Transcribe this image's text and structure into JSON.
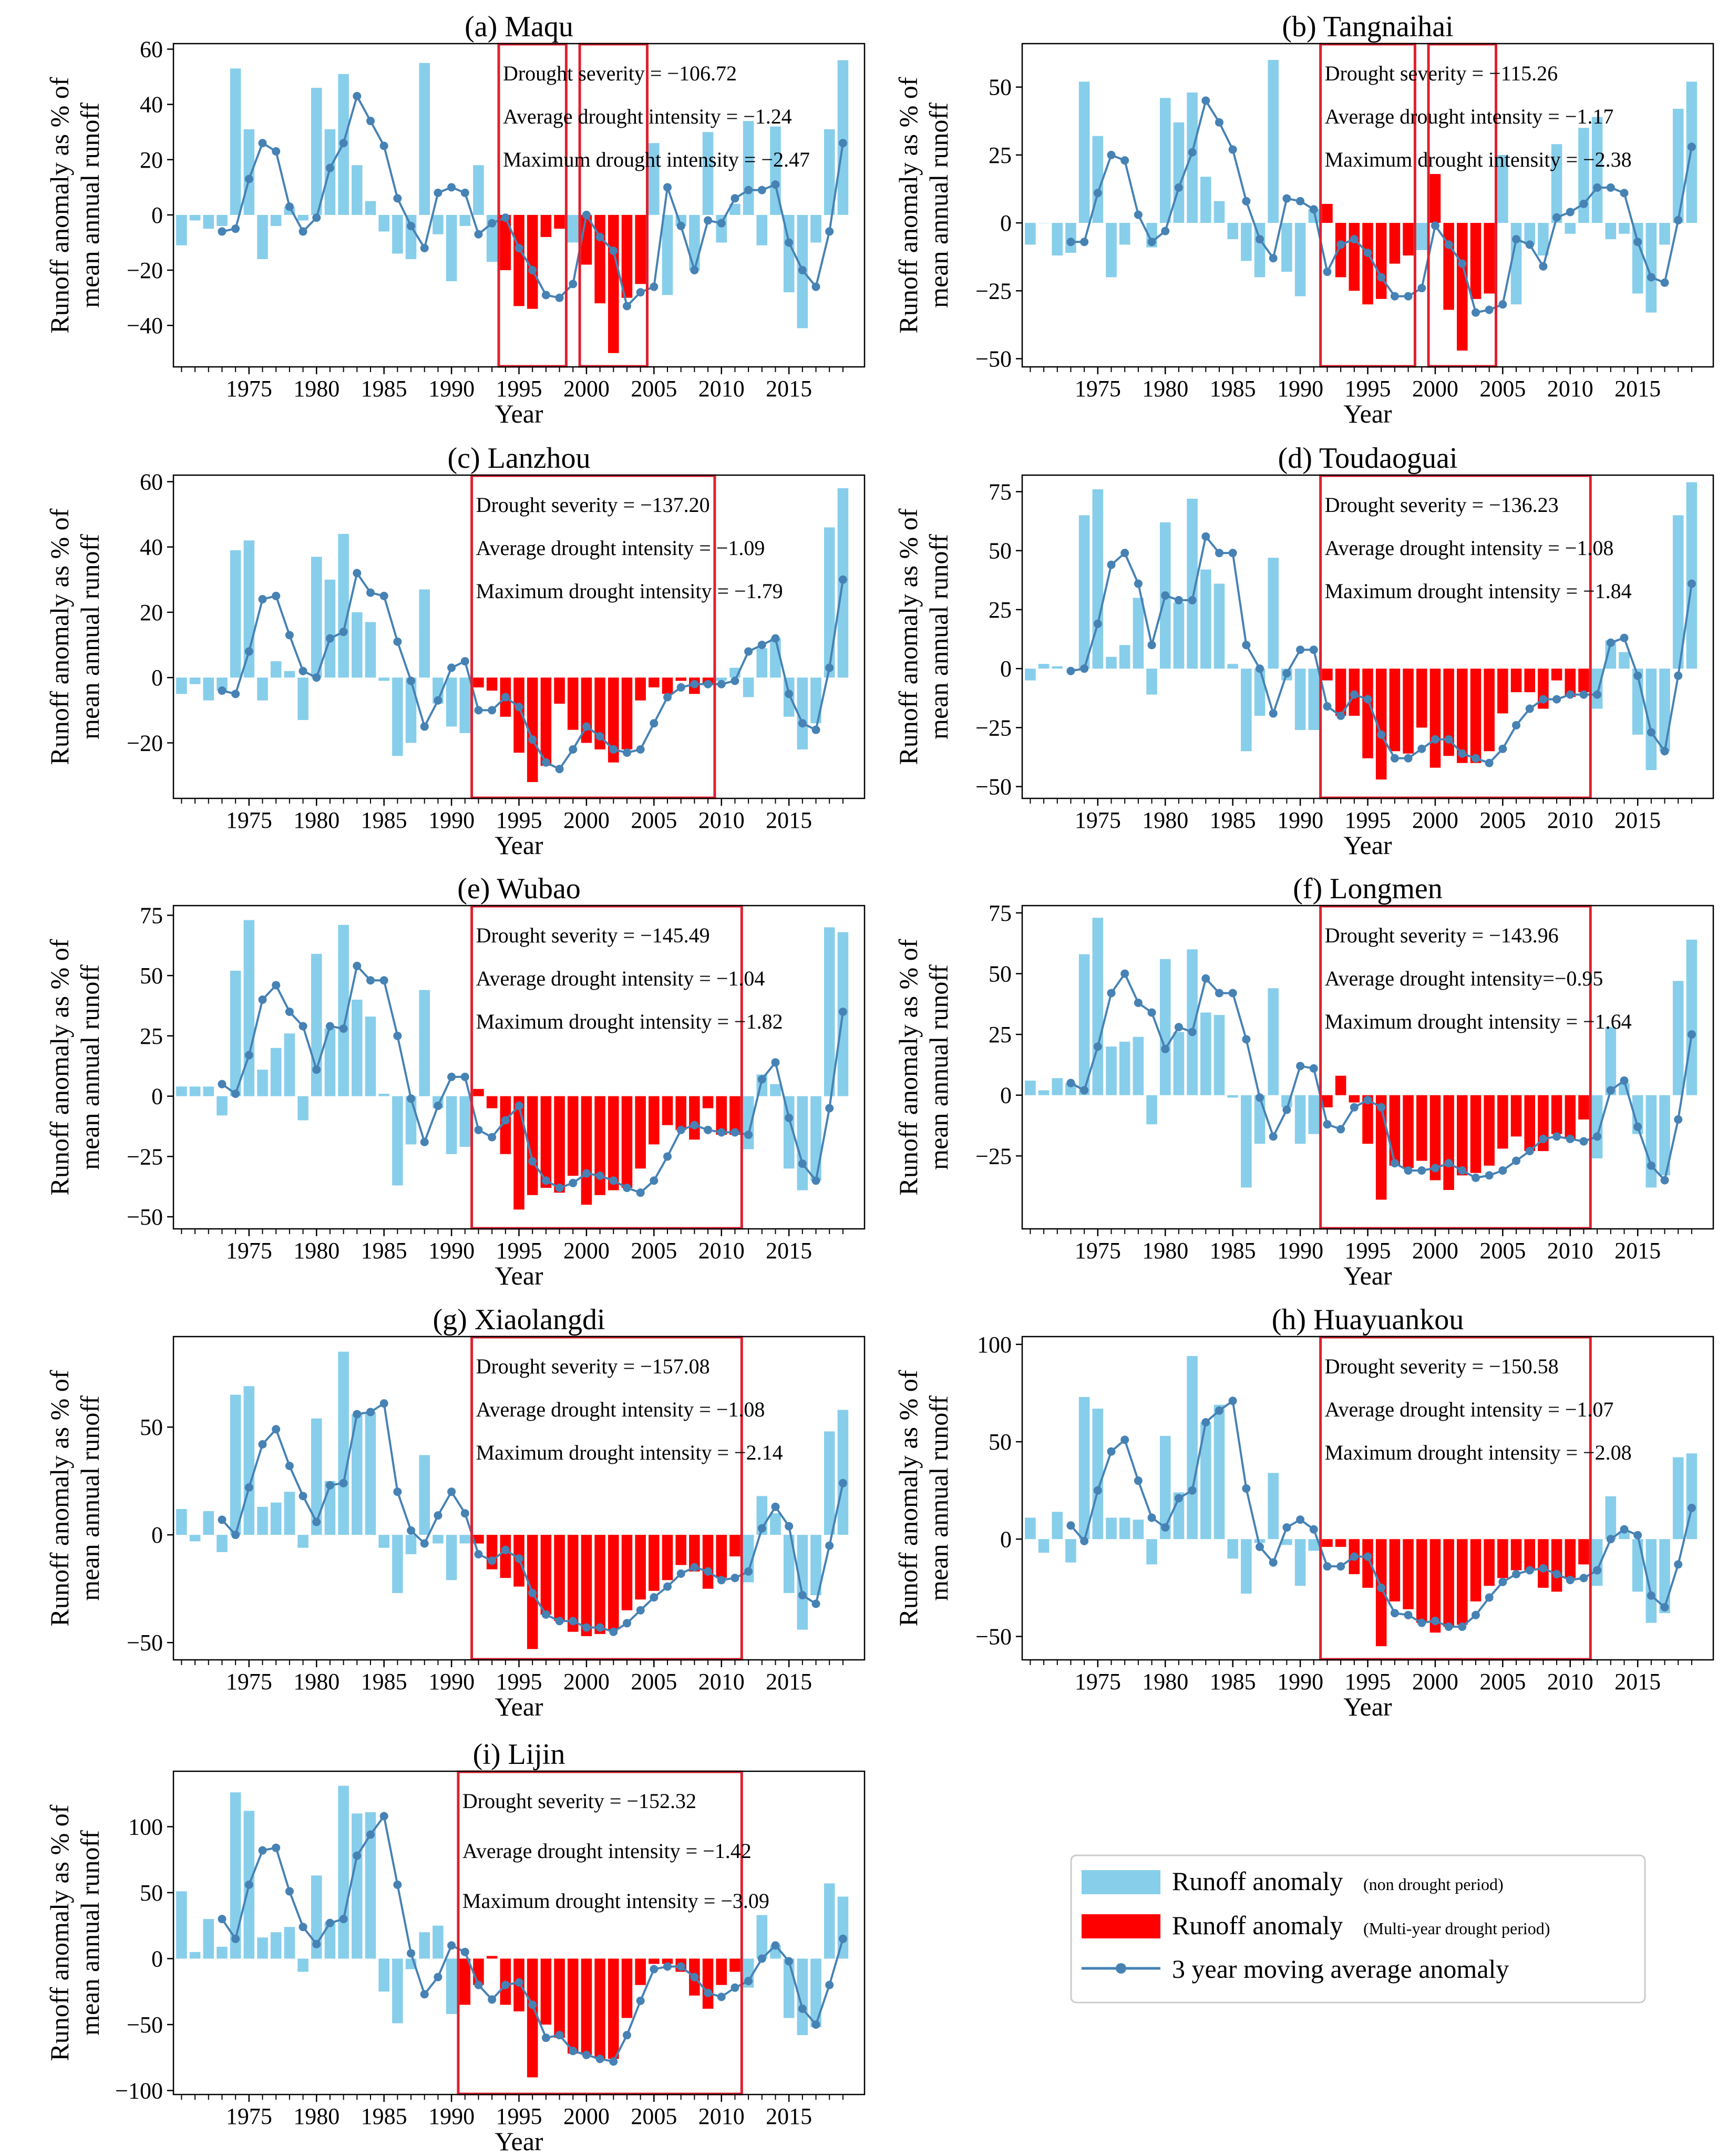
{
  "figure": {
    "legend": {
      "items": [
        {
          "label": "Runoff anomaly",
          "note": "(non drought period)",
          "color": "#87CEEB",
          "kind": "bar"
        },
        {
          "label": "Runoff anomaly",
          "note": "(Multi-year drought period)",
          "color": "#FF0000",
          "kind": "bar"
        },
        {
          "label": "3 year moving average anomaly",
          "note": "",
          "color": "#4682B4",
          "kind": "line"
        }
      ]
    },
    "shared": {
      "xlabel": "Year",
      "ylabel_line1": "Runoff anomaly as % of",
      "ylabel_line2": "mean annual runoff",
      "x_ticks": [
        1975,
        1980,
        1985,
        1990,
        1995,
        2000,
        2005,
        2010,
        2015
      ],
      "xlim": [
        1969.4,
        2020.6
      ],
      "years_range": [
        1970,
        2019
      ],
      "bar_color_normal": "#87CEEB",
      "bar_color_drought": "#FF0000",
      "line_color": "#4682B4",
      "box_color": "#E0202E"
    }
  },
  "chart_data": [
    {
      "type": "bar",
      "title": "(a) Maqu",
      "ylim": [
        -55,
        62
      ],
      "y_ticks": [
        -40,
        -20,
        0,
        20,
        40,
        60
      ],
      "drought_periods": [
        [
          1994,
          1998
        ],
        [
          2000,
          2004
        ]
      ],
      "annotations": [
        "Drought severity = −106.72",
        "Average drought intensity = −1.24",
        "Maximum drought intensity = −2.47"
      ],
      "anomaly": [
        -11,
        -2,
        -5,
        -4,
        53,
        31,
        -16,
        -4,
        3,
        -2,
        46,
        31,
        51,
        18,
        5,
        -6,
        -14,
        -16,
        55,
        -7,
        -24,
        -4,
        18,
        -17,
        -20,
        -33,
        -34,
        -8,
        -5,
        -10,
        -18,
        -32,
        -50,
        -30,
        -25,
        26,
        -29,
        -4,
        -20,
        30,
        -10,
        4,
        34,
        -11,
        32,
        -28,
        -41,
        -10,
        31,
        56
      ],
      "moving_avg": [
        null,
        null,
        null,
        -6,
        -5,
        13,
        26,
        23,
        3,
        -6,
        -1,
        17,
        26,
        43,
        34,
        25,
        6,
        -4,
        -12,
        8,
        10,
        8,
        -7,
        -3,
        -1,
        -12,
        -20,
        -29,
        -30,
        -25,
        0,
        -8,
        -13,
        -33,
        -28,
        -26,
        10,
        -4,
        -20,
        -2,
        -3,
        6,
        9,
        9,
        11,
        -10,
        -20,
        -26,
        -6,
        26
      ]
    },
    {
      "type": "bar",
      "title": "(b) Tangnaihai",
      "ylim": [
        -53,
        66
      ],
      "y_ticks": [
        -50,
        -25,
        0,
        25,
        50
      ],
      "drought_periods": [
        [
          1992,
          1998
        ],
        [
          2000,
          2004
        ]
      ],
      "annotations": [
        "Drought severity = −115.26",
        "Average drought intensity = −1.17",
        "Maximum drought intensity = −2.38"
      ],
      "anomaly": [
        -8,
        0,
        -12,
        -11,
        52,
        32,
        -20,
        -8,
        0,
        -9,
        46,
        37,
        48,
        17,
        8,
        -6,
        -14,
        -20,
        60,
        -18,
        -27,
        5,
        7,
        -20,
        -25,
        -30,
        -28,
        -15,
        -12,
        -10,
        18,
        -32,
        -47,
        -28,
        -26,
        25,
        -30,
        -8,
        -12,
        29,
        -4,
        35,
        39,
        -6,
        -4,
        -26,
        -33,
        -8,
        42,
        52
      ],
      "moving_avg": [
        null,
        null,
        null,
        -7,
        -7,
        11,
        25,
        23,
        3,
        -7,
        -3,
        13,
        26,
        45,
        37,
        27,
        8,
        -6,
        -13,
        9,
        8,
        5,
        -18,
        -8,
        -6,
        -11,
        -20,
        -27,
        -27,
        -24,
        -1,
        -8,
        -15,
        -33,
        -32,
        -30,
        -6,
        -8,
        -16,
        2,
        4,
        7,
        13,
        13,
        11,
        -7,
        -20,
        -22,
        1,
        28
      ]
    },
    {
      "type": "bar",
      "title": "(c) Lanzhou",
      "ylim": [
        -37,
        62
      ],
      "y_ticks": [
        -20,
        0,
        20,
        40,
        60
      ],
      "drought_periods": [
        [
          1992,
          2009
        ]
      ],
      "annotations": [
        "Drought severity = −137.20",
        "Average drought intensity = −1.09",
        "Maximum drought intensity = −1.79"
      ],
      "anomaly": [
        -5,
        -2,
        -7,
        -4,
        39,
        42,
        -7,
        5,
        2,
        -13,
        37,
        30,
        44,
        20,
        17,
        -1,
        -24,
        -20,
        27,
        -8,
        -15,
        -17,
        -3,
        -4,
        -12,
        -23,
        -32,
        -27,
        -8,
        -16,
        -20,
        -22,
        -26,
        -22,
        -7,
        -3,
        -5,
        -1,
        -5,
        -2,
        -1,
        3,
        -6,
        9,
        12,
        -12,
        -22,
        -14,
        46,
        58
      ],
      "moving_avg": [
        null,
        null,
        null,
        -4,
        -5,
        8,
        24,
        25,
        13,
        2,
        0,
        12,
        14,
        32,
        26,
        25,
        11,
        -1,
        -15,
        -7,
        3,
        5,
        -10,
        -10,
        -6,
        -9,
        -19,
        -26,
        -28,
        -22,
        -15,
        -18,
        -22,
        -23,
        -22,
        -14,
        -6,
        -3,
        -2,
        -2,
        -2,
        -1,
        8,
        10,
        12,
        -5,
        -14,
        -16,
        3,
        30
      ]
    },
    {
      "type": "bar",
      "title": "(d) Toudaoguai",
      "ylim": [
        -55,
        82
      ],
      "y_ticks": [
        -50,
        -25,
        0,
        25,
        50,
        75
      ],
      "drought_periods": [
        [
          1992,
          2011
        ]
      ],
      "annotations": [
        "Drought severity = −136.23",
        "Average drought intensity = −1.08",
        "Maximum drought intensity = −1.84"
      ],
      "anomaly": [
        -5,
        2,
        1,
        0,
        65,
        76,
        5,
        10,
        30,
        -11,
        62,
        28,
        72,
        42,
        36,
        2,
        -35,
        -20,
        47,
        -5,
        -26,
        -26,
        -5,
        -20,
        -20,
        -38,
        -47,
        -35,
        -36,
        -25,
        -42,
        -37,
        -40,
        -40,
        -35,
        -19,
        -10,
        -10,
        -17,
        -5,
        -12,
        -10,
        -17,
        12,
        7,
        -28,
        -43,
        -35,
        65,
        79
      ],
      "moving_avg": [
        null,
        null,
        null,
        -1,
        0,
        19,
        44,
        49,
        36,
        10,
        31,
        29,
        29,
        56,
        49,
        49,
        10,
        0,
        -19,
        -2,
        8,
        8,
        -16,
        -20,
        -11,
        -13,
        -28,
        -38,
        -38,
        -34,
        -30,
        -30,
        -36,
        -38,
        -40,
        -34,
        -24,
        -17,
        -13,
        -13,
        -11,
        -11,
        -11,
        11,
        13,
        -3,
        -27,
        -35,
        -3,
        36
      ]
    },
    {
      "type": "bar",
      "title": "(e) Wubao",
      "ylim": [
        -55,
        79
      ],
      "y_ticks": [
        -50,
        -25,
        0,
        25,
        50,
        75
      ],
      "drought_periods": [
        [
          1992,
          2011
        ]
      ],
      "annotations": [
        "Drought severity = −145.49",
        "Average drought intensity = −1.04",
        "Maximum drought intensity = −1.82"
      ],
      "anomaly": [
        4,
        4,
        4,
        -8,
        52,
        73,
        11,
        20,
        26,
        -10,
        59,
        28,
        71,
        40,
        33,
        1,
        -37,
        -20,
        44,
        -5,
        -24,
        -21,
        3,
        -5,
        -24,
        -47,
        -41,
        -38,
        -40,
        -33,
        -45,
        -41,
        -39,
        -38,
        -30,
        -20,
        -12,
        -14,
        -18,
        -5,
        -16,
        -16,
        -22,
        9,
        5,
        -30,
        -39,
        -35,
        70,
        68
      ],
      "moving_avg": [
        null,
        null,
        null,
        5,
        1,
        17,
        40,
        46,
        35,
        29,
        11,
        29,
        28,
        54,
        48,
        48,
        25,
        -1,
        -19,
        -4,
        8,
        8,
        -14,
        -17,
        -10,
        -4,
        -27,
        -35,
        -38,
        -36,
        -32,
        -33,
        -35,
        -38,
        -40,
        -35,
        -25,
        -14,
        -12,
        -14,
        -15,
        -15,
        -16,
        7,
        14,
        -9,
        -28,
        -35,
        -5,
        35
      ]
    },
    {
      "type": "bar",
      "title": "(f) Longmen",
      "ylim": [
        -55,
        78
      ],
      "y_ticks": [
        -25,
        0,
        25,
        50,
        75
      ],
      "drought_periods": [
        [
          1992,
          2011
        ]
      ],
      "annotations": [
        "Drought severity = −143.96",
        "Average drought intensity=−0.95",
        "Maximum drought intensity = −1.64"
      ],
      "anomaly": [
        6,
        2,
        7,
        5,
        58,
        73,
        20,
        22,
        24,
        -12,
        56,
        26,
        60,
        34,
        33,
        -1,
        -38,
        -20,
        44,
        -5,
        -20,
        -16,
        -5,
        8,
        -3,
        -20,
        -43,
        -29,
        -30,
        -27,
        -35,
        -39,
        -33,
        -32,
        -29,
        -22,
        -17,
        -23,
        -23,
        -16,
        -18,
        -10,
        -26,
        28,
        5,
        -16,
        -38,
        -33,
        47,
        64
      ],
      "moving_avg": [
        null,
        null,
        null,
        5,
        2,
        20,
        42,
        50,
        38,
        34,
        19,
        28,
        26,
        48,
        42,
        42,
        23,
        -1,
        -17,
        -6,
        12,
        11,
        -12,
        -14,
        -5,
        -2,
        -5,
        -28,
        -31,
        -31,
        -30,
        -28,
        -31,
        -34,
        -33,
        -31,
        -27,
        -23,
        -18,
        -17,
        -18,
        -19,
        -17,
        2,
        6,
        -13,
        -29,
        -35,
        -10,
        25
      ]
    },
    {
      "type": "bar",
      "title": "(g) Xiaolangdi",
      "ylim": [
        -58,
        92
      ],
      "y_ticks": [
        -50,
        0,
        50
      ],
      "drought_periods": [
        [
          1992,
          2011
        ]
      ],
      "annotations": [
        "Drought severity = −157.08",
        "Average drought intensity = −1.08",
        "Maximum drought intensity = −2.14"
      ],
      "anomaly": [
        12,
        -3,
        11,
        -8,
        65,
        69,
        13,
        15,
        20,
        -6,
        54,
        25,
        85,
        56,
        57,
        -6,
        -27,
        -9,
        37,
        -4,
        -21,
        -4,
        -4,
        -16,
        -20,
        -24,
        -53,
        -37,
        -40,
        -45,
        -47,
        -46,
        -44,
        -35,
        -30,
        -26,
        -21,
        -14,
        -17,
        -25,
        -20,
        -10,
        -22,
        18,
        10,
        -27,
        -44,
        -28,
        48,
        58
      ],
      "moving_avg": [
        null,
        null,
        null,
        7,
        0,
        22,
        42,
        49,
        32,
        18,
        6,
        23,
        24,
        56,
        57,
        61,
        20,
        2,
        -4,
        9,
        20,
        10,
        -9,
        -12,
        -7,
        -11,
        -27,
        -37,
        -40,
        -40,
        -43,
        -43,
        -45,
        -41,
        -35,
        -29,
        -24,
        -18,
        -15,
        -17,
        -21,
        -20,
        -17,
        3,
        13,
        4,
        -28,
        -32,
        -5,
        24
      ]
    },
    {
      "type": "bar",
      "title": "(h) Huayuankou",
      "ylim": [
        -62,
        104
      ],
      "y_ticks": [
        -50,
        0,
        50,
        100
      ],
      "drought_periods": [
        [
          1992,
          2011
        ]
      ],
      "annotations": [
        "Drought severity = −150.58",
        "Average drought intensity = −1.07",
        "Maximum drought intensity = −2.08"
      ],
      "anomaly": [
        11,
        -7,
        14,
        -12,
        73,
        67,
        11,
        11,
        10,
        -13,
        53,
        24,
        94,
        60,
        69,
        -10,
        -28,
        -2,
        34,
        -3,
        -24,
        -6,
        -4,
        -4,
        -18,
        -25,
        -55,
        -32,
        -36,
        -43,
        -48,
        -45,
        -44,
        -32,
        -24,
        -20,
        -16,
        -16,
        -25,
        -27,
        -20,
        -13,
        -24,
        22,
        4,
        -27,
        -43,
        -38,
        42,
        44
      ],
      "moving_avg": [
        null,
        null,
        null,
        7,
        -1,
        25,
        45,
        51,
        30,
        11,
        6,
        21,
        25,
        60,
        66,
        71,
        26,
        -4,
        -12,
        6,
        10,
        5,
        -14,
        -14,
        -9,
        -9,
        -25,
        -38,
        -39,
        -43,
        -42,
        -45,
        -45,
        -39,
        -30,
        -22,
        -18,
        -16,
        -15,
        -18,
        -21,
        -20,
        -16,
        0,
        5,
        2,
        -29,
        -35,
        -13,
        16
      ]
    },
    {
      "type": "bar",
      "title": "(i) Lijin",
      "ylim": [
        -103,
        142
      ],
      "y_ticks": [
        -100,
        -50,
        0,
        50,
        100
      ],
      "drought_periods": [
        [
          1991,
          2011
        ]
      ],
      "annotations": [
        "Drought severity = −152.32",
        "Average drought intensity = −1.42",
        "Maximum drought intensity = −3.09"
      ],
      "anomaly": [
        51,
        5,
        30,
        9,
        126,
        112,
        16,
        20,
        24,
        -10,
        63,
        28,
        131,
        110,
        111,
        -25,
        -49,
        -8,
        20,
        25,
        -42,
        -35,
        -20,
        2,
        -35,
        -40,
        -90,
        -50,
        -60,
        -72,
        -73,
        -76,
        -76,
        -45,
        -20,
        -4,
        -4,
        -10,
        -28,
        -38,
        -20,
        -10,
        -22,
        33,
        10,
        -45,
        -58,
        -52,
        57,
        47
      ],
      "moving_avg": [
        null,
        null,
        null,
        30,
        15,
        56,
        82,
        84,
        51,
        24,
        11,
        27,
        30,
        78,
        94,
        108,
        56,
        4,
        -27,
        -14,
        10,
        5,
        -20,
        -31,
        -20,
        -18,
        -35,
        -60,
        -58,
        -70,
        -73,
        -76,
        -78,
        -58,
        -32,
        -8,
        -6,
        -6,
        -14,
        -26,
        -29,
        -22,
        -17,
        0,
        10,
        -2,
        -38,
        -50,
        -20,
        15
      ]
    }
  ]
}
